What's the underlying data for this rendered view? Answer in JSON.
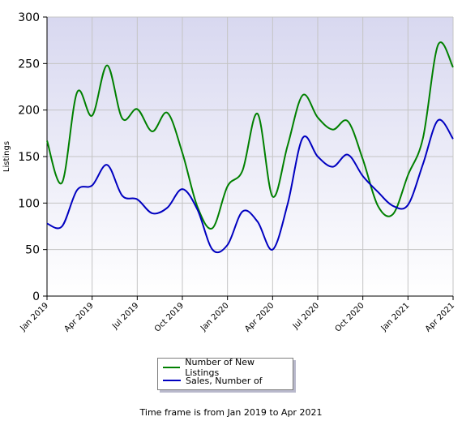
{
  "chart_data": {
    "type": "line",
    "ylabel": "Listings",
    "xlabel": "",
    "ylim": [
      0,
      300
    ],
    "yticks": [
      0,
      50,
      100,
      150,
      200,
      250,
      300
    ],
    "x_tick_labels": [
      "Jan 2019",
      "Apr 2019",
      "Jul 2019",
      "Oct 2019",
      "Jan 2020",
      "Apr 2020",
      "Jul 2020",
      "Oct 2020",
      "Jan 2021",
      "Apr 2021"
    ],
    "x": [
      "Jan 2019",
      "Feb 2019",
      "Mar 2019",
      "Apr 2019",
      "May 2019",
      "Jun 2019",
      "Jul 2019",
      "Aug 2019",
      "Sep 2019",
      "Oct 2019",
      "Nov 2019",
      "Dec 2019",
      "Jan 2020",
      "Feb 2020",
      "Mar 2020",
      "Apr 2020",
      "May 2020",
      "Jun 2020",
      "Jul 2020",
      "Aug 2020",
      "Sep 2020",
      "Oct 2020",
      "Nov 2020",
      "Dec 2020",
      "Jan 2021",
      "Feb 2021",
      "Mar 2021",
      "Apr 2021"
    ],
    "series": [
      {
        "name": "Number of New Listings",
        "color": "#008000",
        "values": [
          167,
          122,
          219,
          194,
          248,
          191,
          201,
          177,
          197,
          154,
          96,
          73,
          118,
          135,
          196,
          107,
          162,
          216,
          192,
          179,
          188,
          147,
          97,
          88,
          130,
          170,
          270,
          246
        ]
      },
      {
        "name": "Sales, Number of",
        "color": "#0000c0",
        "values": [
          78,
          75,
          114,
          119,
          141,
          108,
          104,
          89,
          95,
          115,
          93,
          50,
          55,
          91,
          80,
          50,
          99,
          170,
          150,
          139,
          152,
          129,
          112,
          97,
          98,
          142,
          189,
          169
        ]
      }
    ],
    "grid": true,
    "legend_position": "bottom"
  },
  "caption": "Time frame is from Jan 2019 to Apr 2021"
}
